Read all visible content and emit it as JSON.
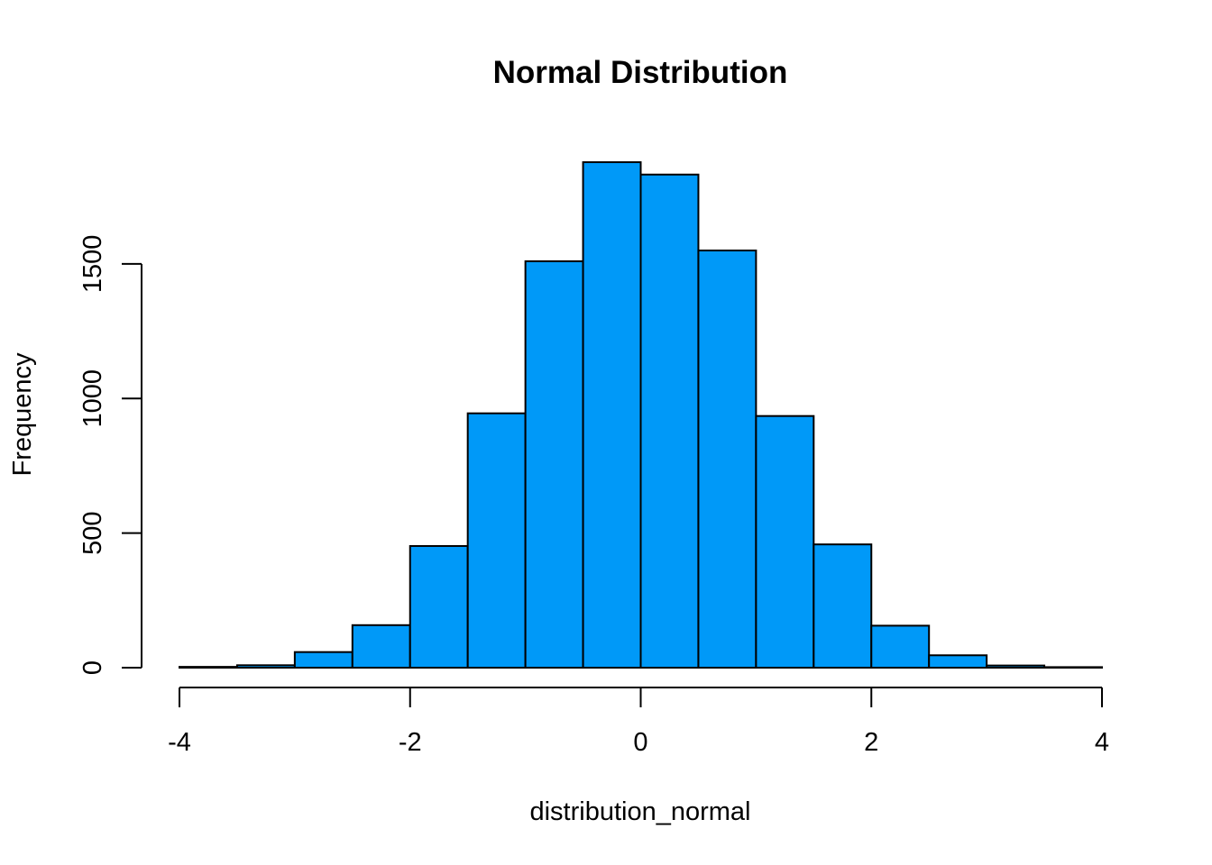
{
  "chart_data": {
    "type": "bar",
    "title": "Normal Distribution",
    "xlabel": "distribution_normal",
    "ylabel": "Frequency",
    "bin_edges": [
      -4,
      -3.5,
      -3,
      -2.5,
      -2,
      -1.5,
      -1,
      -0.5,
      0,
      0.5,
      1,
      1.5,
      2,
      2.5,
      3,
      3.5,
      4
    ],
    "counts": [
      3,
      9,
      58,
      158,
      452,
      945,
      1510,
      1878,
      1832,
      1550,
      935,
      458,
      156,
      46,
      8,
      2
    ],
    "xlim": [
      -4,
      4
    ],
    "ylim": [
      0,
      1878
    ],
    "x_ticks": [
      -4,
      -2,
      0,
      2,
      4
    ],
    "x_tick_labels": [
      "-4",
      "-2",
      "0",
      "2",
      "4"
    ],
    "y_ticks": [
      0,
      500,
      1000,
      1500
    ],
    "y_tick_labels": [
      "0",
      "500",
      "1000",
      "1500"
    ],
    "bar_color": "#0099f8",
    "edge_color": "#000000",
    "grid": false
  }
}
